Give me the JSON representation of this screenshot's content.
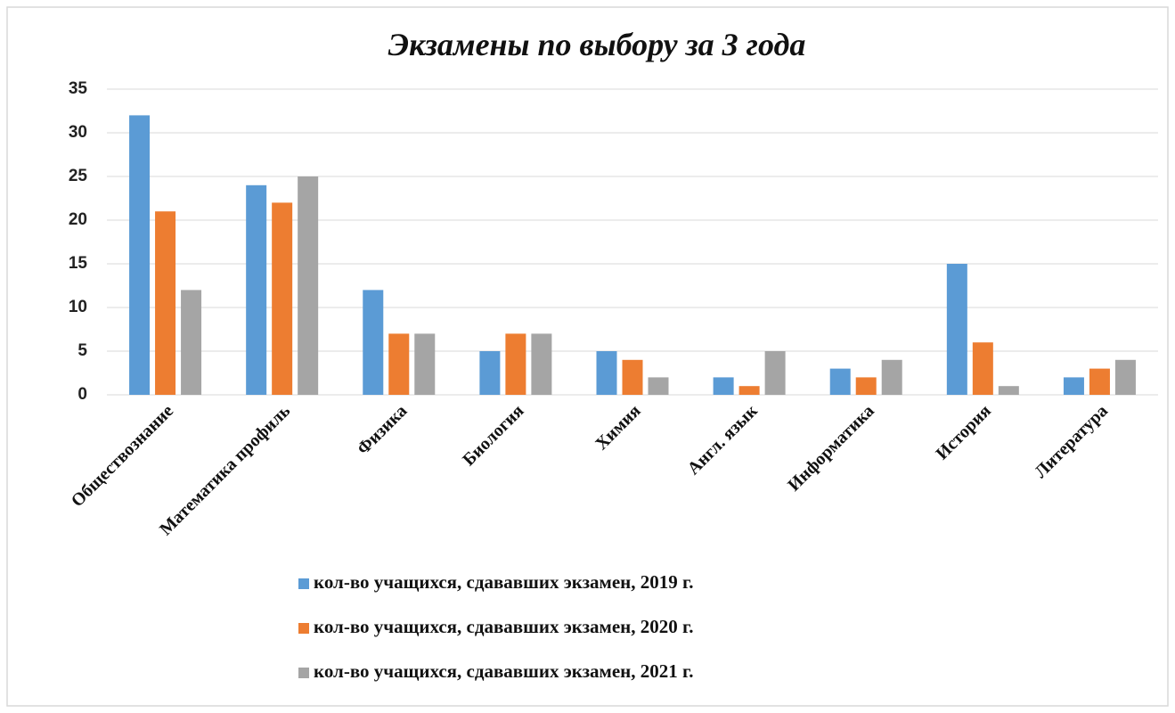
{
  "chart_data": {
    "type": "bar",
    "title": "Экзамены по выбору за 3 года",
    "categories": [
      "Обществознание",
      "Математика профиль",
      "Физика",
      "Биология",
      "Химия",
      "Англ. язык",
      "Информатика",
      "История",
      "Литература"
    ],
    "series": [
      {
        "name": "кол-во учащихся, сдававших экзамен, 2019 г.",
        "color": "#5b9bd5",
        "values": [
          32,
          24,
          12,
          5,
          5,
          2,
          3,
          15,
          2
        ]
      },
      {
        "name": "кол-во учащихся, сдававших экзамен, 2020 г.",
        "color": "#ed7d31",
        "values": [
          21,
          22,
          7,
          7,
          4,
          1,
          2,
          6,
          3
        ]
      },
      {
        "name": "кол-во учащихся, сдававших экзамен, 2021 г.",
        "color": "#a5a5a5",
        "values": [
          12,
          25,
          7,
          7,
          2,
          5,
          4,
          1,
          4
        ]
      }
    ],
    "ylim": [
      0,
      35
    ],
    "yticks": [
      0,
      5,
      10,
      15,
      20,
      25,
      30,
      35
    ],
    "grid": true,
    "legend": "bottom"
  }
}
